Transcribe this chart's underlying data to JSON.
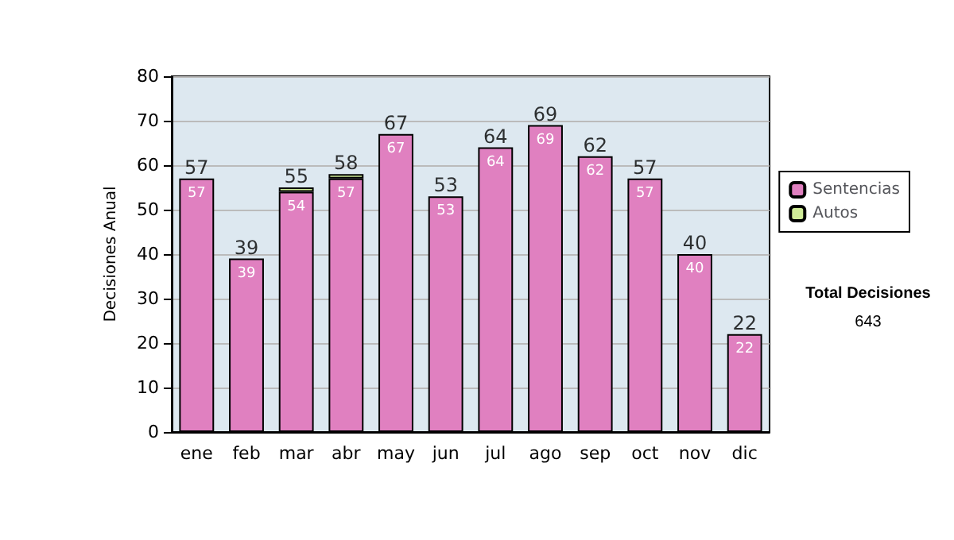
{
  "chart_data": {
    "type": "bar",
    "stacked": true,
    "ylabel": "Decisiones Anual",
    "categories": [
      "ene",
      "feb",
      "mar",
      "abr",
      "may",
      "jun",
      "jul",
      "ago",
      "sep",
      "oct",
      "nov",
      "dic"
    ],
    "series": [
      {
        "name": "Sentencias",
        "color": "#e080c0",
        "values": [
          57,
          39,
          54,
          57,
          67,
          53,
          64,
          69,
          62,
          57,
          40,
          22
        ],
        "value_labels": [
          "57",
          "39",
          "54",
          "57",
          "67",
          "53",
          "64",
          "69",
          "62",
          "57",
          "40",
          "22"
        ]
      },
      {
        "name": "Autos",
        "color": "#d0ec98",
        "values": [
          0,
          0,
          1,
          1,
          0,
          0,
          0,
          0,
          0,
          0,
          0,
          0
        ]
      }
    ],
    "totals": [
      "57",
      "39",
      "55",
      "58",
      "67",
      "53",
      "64",
      "69",
      "62",
      "57",
      "40",
      "22"
    ],
    "ylim": [
      0,
      80
    ],
    "yticks": [
      0,
      10,
      20,
      30,
      40,
      50,
      60,
      70,
      80
    ],
    "grid": "y",
    "legend": "right",
    "annotations": [
      "Total Decisiones",
      "643"
    ]
  }
}
